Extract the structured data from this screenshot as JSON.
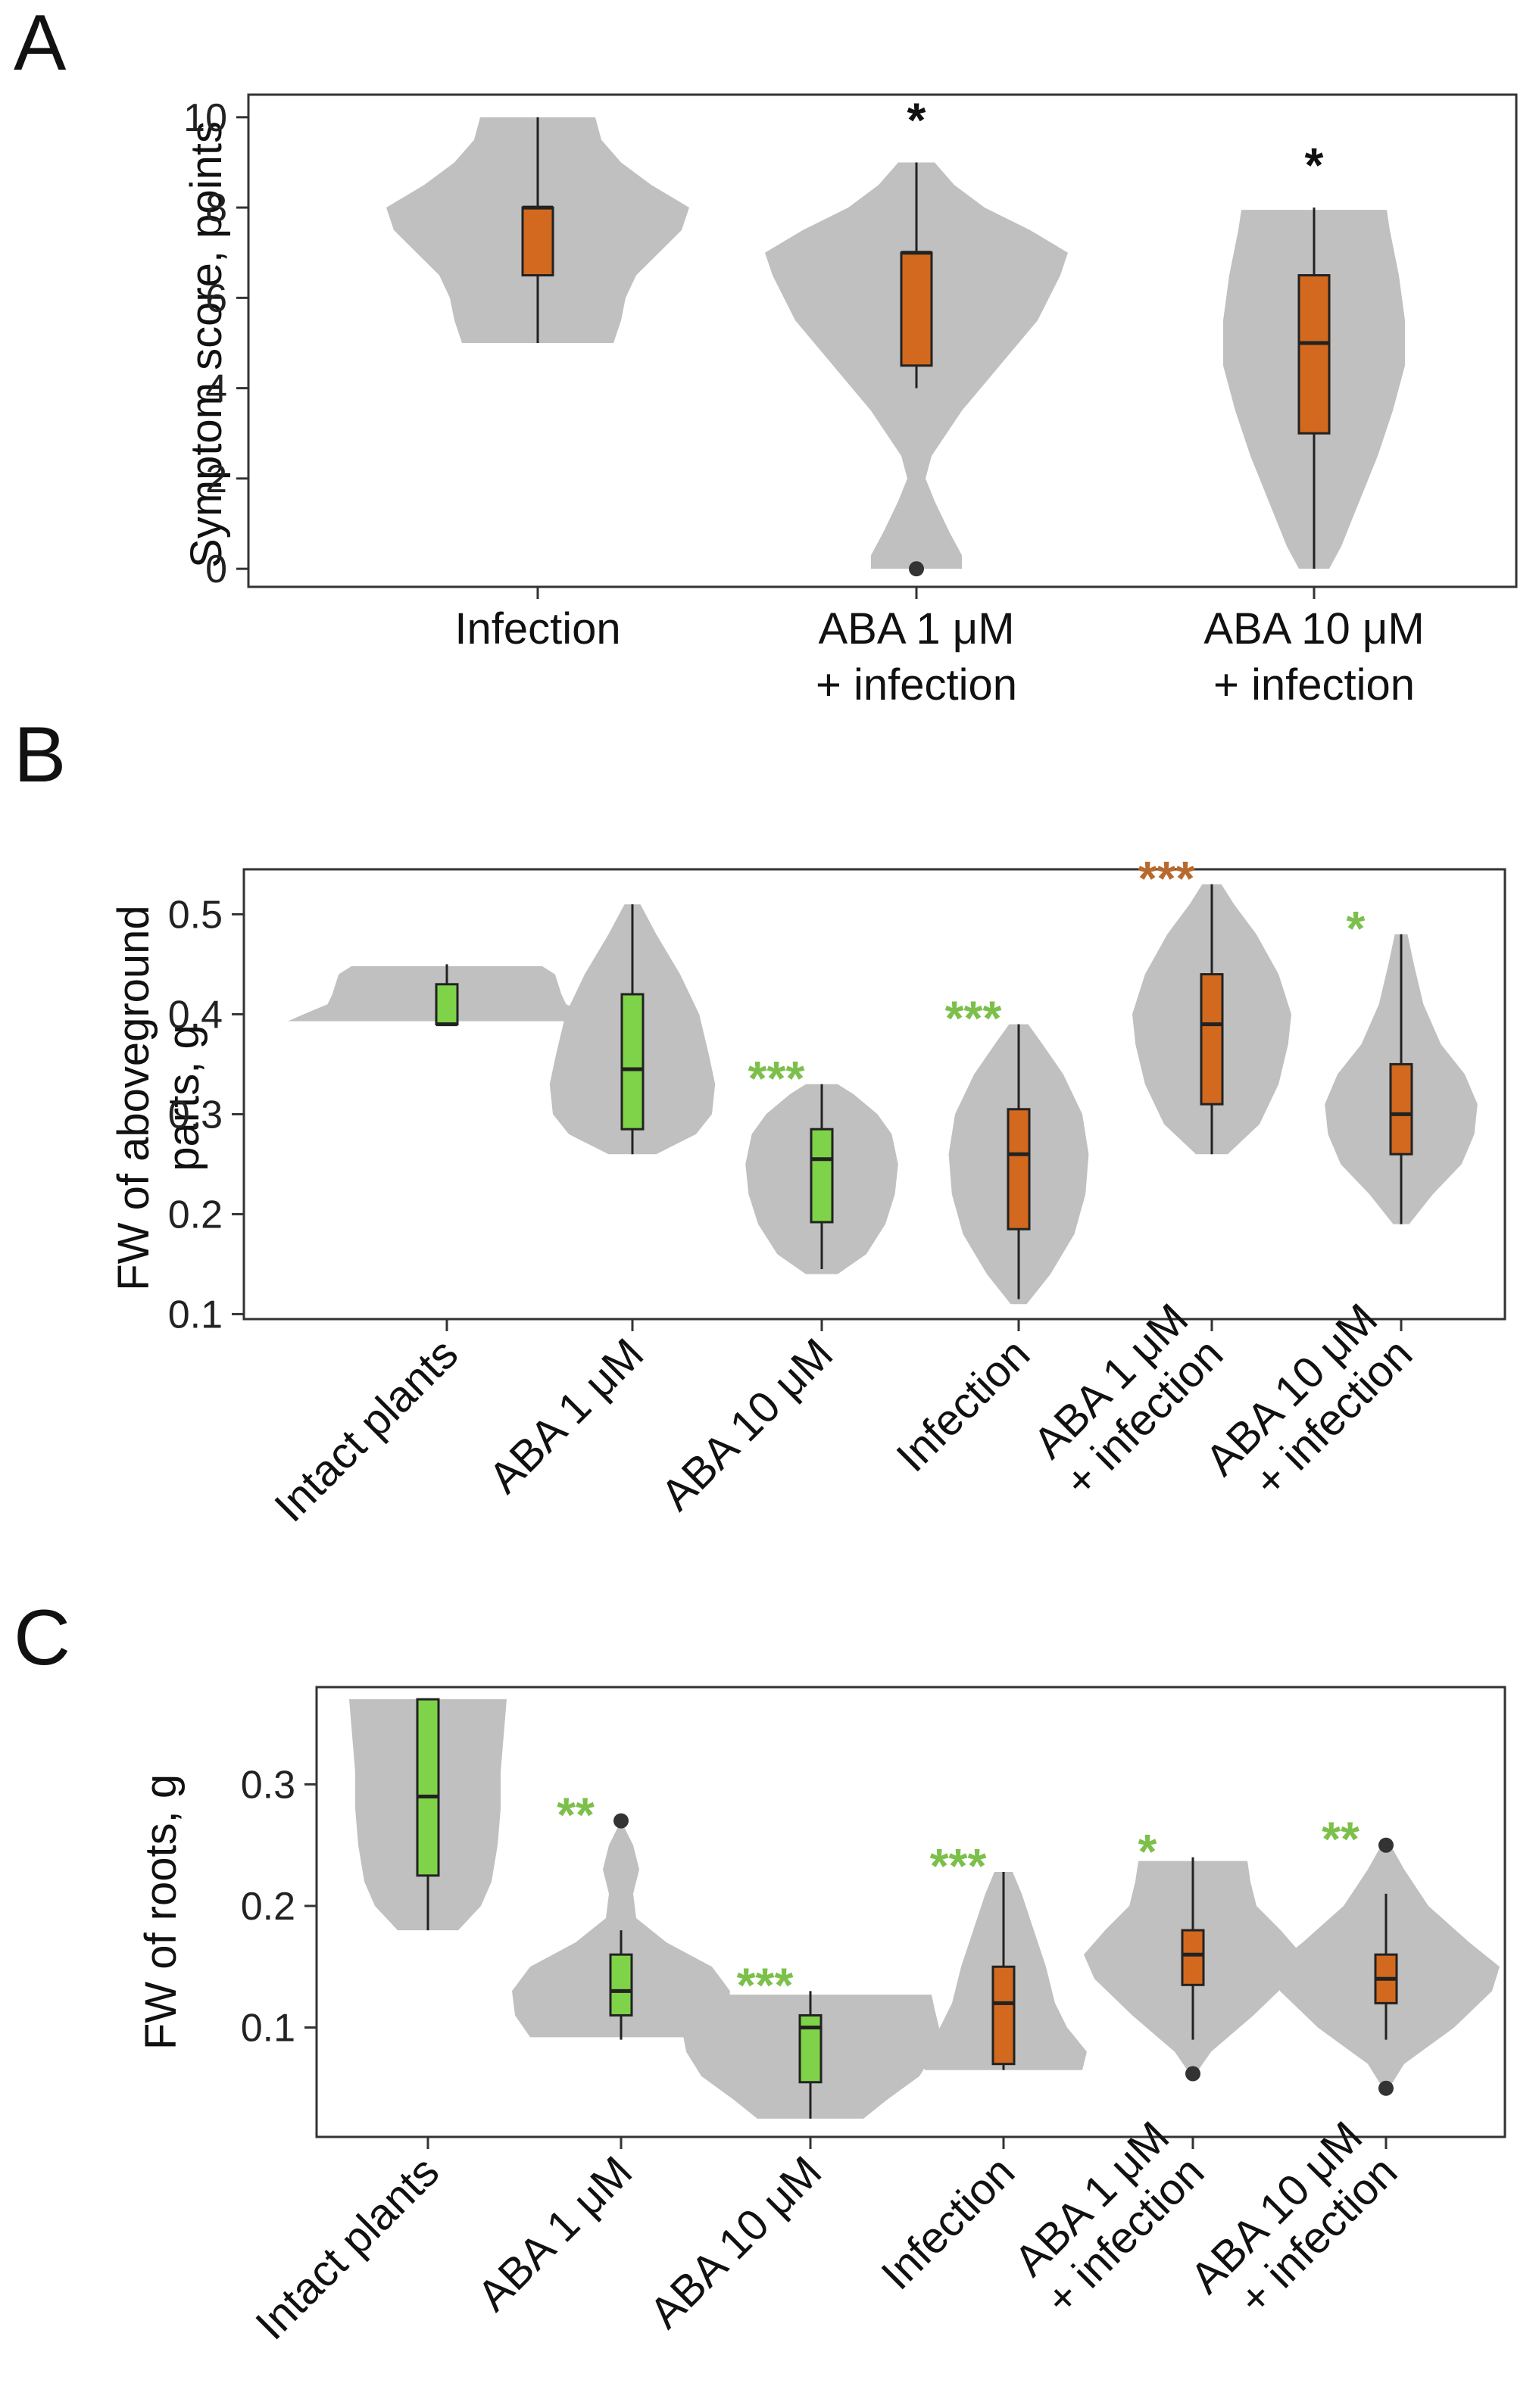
{
  "colors": {
    "violin": "#c0c0c0",
    "box_orange": "#d2691e",
    "box_green": "#7ed348",
    "star_black": "#111111",
    "star_green": "#7cc04b",
    "star_orange": "#b86a2e",
    "outlier": "#333333"
  },
  "chart_data": [
    {
      "panel": "A",
      "type": "violin",
      "ylabel": "Symptom score, points",
      "ylim": [
        -0.4,
        10.5
      ],
      "yticks": [
        0,
        2,
        4,
        6,
        8,
        10
      ],
      "ytick_labels": [
        "0",
        "2",
        "4",
        "6",
        "8",
        "10"
      ],
      "categories": [
        {
          "lines": [
            "Infection"
          ]
        },
        {
          "lines": [
            "ABA 1 μM",
            "+ infection"
          ]
        },
        {
          "lines": [
            "ABA 10 μM",
            "+ infection"
          ]
        }
      ],
      "groups": [
        {
          "name": "Infection",
          "box_color": "orange",
          "min": 5,
          "q1": 6.5,
          "median": 8,
          "q3": 8,
          "max": 10,
          "outliers": [],
          "sig": "",
          "sig_color": "black",
          "violin": [
            [
              5.0,
              0.5
            ],
            [
              5.5,
              0.55
            ],
            [
              6.0,
              0.58
            ],
            [
              6.5,
              0.65
            ],
            [
              7.0,
              0.8
            ],
            [
              7.5,
              0.95
            ],
            [
              8.0,
              1.0
            ],
            [
              8.5,
              0.75
            ],
            [
              9.0,
              0.55
            ],
            [
              9.5,
              0.42
            ],
            [
              10.0,
              0.38
            ]
          ]
        },
        {
          "name": "ABA 1 μM + infection",
          "box_color": "orange",
          "min": 4,
          "q1": 4.5,
          "median": 7,
          "q3": 7,
          "max": 9,
          "outliers": [
            0
          ],
          "sig": "*",
          "sig_color": "black",
          "violin": [
            [
              0.0,
              0.3
            ],
            [
              0.3,
              0.3
            ],
            [
              0.8,
              0.22
            ],
            [
              1.5,
              0.12
            ],
            [
              2.0,
              0.06
            ],
            [
              2.5,
              0.1
            ],
            [
              3.5,
              0.3
            ],
            [
              4.5,
              0.55
            ],
            [
              5.5,
              0.8
            ],
            [
              6.5,
              0.95
            ],
            [
              7.0,
              1.0
            ],
            [
              7.5,
              0.75
            ],
            [
              8.0,
              0.45
            ],
            [
              8.5,
              0.25
            ],
            [
              9.0,
              0.12
            ]
          ]
        },
        {
          "name": "ABA 10 μM + infection",
          "box_color": "orange",
          "min": 0,
          "q1": 3,
          "median": 5,
          "q3": 6.5,
          "max": 8,
          "outliers": [],
          "sig": "*",
          "sig_color": "black",
          "violin": [
            [
              0.0,
              0.1
            ],
            [
              0.5,
              0.18
            ],
            [
              1.5,
              0.3
            ],
            [
              2.5,
              0.42
            ],
            [
              3.5,
              0.52
            ],
            [
              4.5,
              0.6
            ],
            [
              5.5,
              0.6
            ],
            [
              6.5,
              0.56
            ],
            [
              7.5,
              0.5
            ],
            [
              7.95,
              0.48
            ]
          ]
        }
      ]
    },
    {
      "panel": "B",
      "type": "violin",
      "ylabel": [
        "FW of aboveground",
        "parts, g"
      ],
      "ylim": [
        0.095,
        0.545
      ],
      "yticks": [
        0.1,
        0.2,
        0.3,
        0.4,
        0.5
      ],
      "ytick_labels": [
        "0.1",
        "0.2",
        "0.3",
        "0.4",
        "0.5"
      ],
      "categories": [
        {
          "lines": [
            "Intact plants"
          ]
        },
        {
          "lines": [
            "ABA 1 μM"
          ]
        },
        {
          "lines": [
            "ABA 10 μM"
          ]
        },
        {
          "lines": [
            "Infection"
          ]
        },
        {
          "lines": [
            "ABA 1 μM",
            "+ infection"
          ]
        },
        {
          "lines": [
            "ABA 10 μM",
            "+ infection"
          ]
        }
      ],
      "groups": [
        {
          "name": "Intact plants",
          "box_color": "green",
          "min": 0.39,
          "q1": 0.39,
          "median": 0.39,
          "q3": 0.43,
          "max": 0.45,
          "outliers": [],
          "sig": "",
          "sig_color": "green",
          "violin": [
            [
              0.393,
              1.0
            ],
            [
              0.4,
              0.9
            ],
            [
              0.41,
              0.75
            ],
            [
              0.42,
              0.72
            ],
            [
              0.43,
              0.7
            ],
            [
              0.44,
              0.68
            ],
            [
              0.448,
              0.6
            ]
          ]
        },
        {
          "name": "ABA 1 μM",
          "box_color": "green",
          "min": 0.26,
          "q1": 0.285,
          "median": 0.345,
          "q3": 0.42,
          "max": 0.51,
          "outliers": [],
          "sig": "",
          "sig_color": "green",
          "violin": [
            [
              0.26,
              0.15
            ],
            [
              0.28,
              0.4
            ],
            [
              0.3,
              0.5
            ],
            [
              0.33,
              0.52
            ],
            [
              0.36,
              0.48
            ],
            [
              0.4,
              0.42
            ],
            [
              0.44,
              0.3
            ],
            [
              0.48,
              0.15
            ],
            [
              0.51,
              0.05
            ]
          ]
        },
        {
          "name": "ABA 10 μM",
          "box_color": "green",
          "min": 0.145,
          "q1": 0.192,
          "median": 0.255,
          "q3": 0.285,
          "max": 0.33,
          "outliers": [],
          "sig": "***",
          "sig_color": "green",
          "violin": [
            [
              0.14,
              0.1
            ],
            [
              0.16,
              0.28
            ],
            [
              0.19,
              0.4
            ],
            [
              0.22,
              0.46
            ],
            [
              0.25,
              0.48
            ],
            [
              0.28,
              0.44
            ],
            [
              0.3,
              0.35
            ],
            [
              0.32,
              0.2
            ],
            [
              0.33,
              0.1
            ]
          ]
        },
        {
          "name": "Infection",
          "box_color": "orange",
          "min": 0.115,
          "q1": 0.185,
          "median": 0.26,
          "q3": 0.305,
          "max": 0.39,
          "outliers": [],
          "sig": "***",
          "sig_color": "green",
          "violin": [
            [
              0.11,
              0.05
            ],
            [
              0.14,
              0.2
            ],
            [
              0.18,
              0.35
            ],
            [
              0.22,
              0.42
            ],
            [
              0.26,
              0.44
            ],
            [
              0.3,
              0.4
            ],
            [
              0.34,
              0.28
            ],
            [
              0.37,
              0.15
            ],
            [
              0.39,
              0.06
            ]
          ]
        },
        {
          "name": "ABA 1 μM + infection",
          "box_color": "orange",
          "min": 0.26,
          "q1": 0.31,
          "median": 0.39,
          "q3": 0.44,
          "max": 0.53,
          "outliers": [],
          "sig": "***",
          "sig_color": "orange",
          "violin": [
            [
              0.26,
              0.1
            ],
            [
              0.29,
              0.3
            ],
            [
              0.33,
              0.42
            ],
            [
              0.37,
              0.48
            ],
            [
              0.4,
              0.5
            ],
            [
              0.44,
              0.42
            ],
            [
              0.48,
              0.28
            ],
            [
              0.51,
              0.14
            ],
            [
              0.53,
              0.06
            ]
          ]
        },
        {
          "name": "ABA 10 μM + infection",
          "box_color": "orange",
          "min": 0.19,
          "q1": 0.26,
          "median": 0.3,
          "q3": 0.35,
          "max": 0.48,
          "outliers": [],
          "sig": "*",
          "sig_color": "green",
          "violin": [
            [
              0.19,
              0.05
            ],
            [
              0.22,
              0.2
            ],
            [
              0.25,
              0.38
            ],
            [
              0.28,
              0.46
            ],
            [
              0.31,
              0.48
            ],
            [
              0.34,
              0.4
            ],
            [
              0.37,
              0.25
            ],
            [
              0.41,
              0.14
            ],
            [
              0.45,
              0.08
            ],
            [
              0.48,
              0.04
            ]
          ]
        }
      ]
    },
    {
      "panel": "C",
      "type": "violin",
      "ylabel": "FW of roots, g",
      "ylim": [
        0.01,
        0.38
      ],
      "yticks": [
        0.1,
        0.2,
        0.3
      ],
      "ytick_labels": [
        "0.1",
        "0.2",
        "0.3"
      ],
      "categories": [
        {
          "lines": [
            "Intact plants"
          ]
        },
        {
          "lines": [
            "ABA 1 μM"
          ]
        },
        {
          "lines": [
            "ABA 10 μM"
          ]
        },
        {
          "lines": [
            "Infection"
          ]
        },
        {
          "lines": [
            "ABA 1 μM",
            "+ infection"
          ]
        },
        {
          "lines": [
            "ABA 10 μM",
            "+ infection"
          ]
        }
      ],
      "groups": [
        {
          "name": "Intact plants",
          "box_color": "green",
          "min": 0.18,
          "q1": 0.225,
          "median": 0.29,
          "q3": 0.37,
          "max": 0.37,
          "outliers": [],
          "sig": "",
          "sig_color": "green",
          "violin": [
            [
              0.18,
              0.2
            ],
            [
              0.2,
              0.35
            ],
            [
              0.22,
              0.42
            ],
            [
              0.25,
              0.46
            ],
            [
              0.28,
              0.48
            ],
            [
              0.31,
              0.48
            ],
            [
              0.34,
              0.5
            ],
            [
              0.37,
              0.52
            ]
          ]
        },
        {
          "name": "ABA 1 μM",
          "box_color": "green",
          "min": 0.09,
          "q1": 0.11,
          "median": 0.13,
          "q3": 0.16,
          "max": 0.18,
          "outliers": [
            0.27
          ],
          "sig": "**",
          "sig_color": "green",
          "violin": [
            [
              0.092,
              0.6
            ],
            [
              0.11,
              0.7
            ],
            [
              0.13,
              0.72
            ],
            [
              0.15,
              0.6
            ],
            [
              0.17,
              0.3
            ],
            [
              0.19,
              0.1
            ],
            [
              0.21,
              0.08
            ],
            [
              0.23,
              0.12
            ],
            [
              0.25,
              0.08
            ],
            [
              0.265,
              0.02
            ]
          ]
        },
        {
          "name": "ABA 10 μM",
          "box_color": "green",
          "min": 0.025,
          "q1": 0.055,
          "median": 0.1,
          "q3": 0.11,
          "max": 0.13,
          "outliers": [],
          "sig": "***",
          "sig_color": "green",
          "violin": [
            [
              0.025,
              0.35
            ],
            [
              0.04,
              0.5
            ],
            [
              0.06,
              0.72
            ],
            [
              0.08,
              0.82
            ],
            [
              0.1,
              0.85
            ],
            [
              0.115,
              0.82
            ],
            [
              0.127,
              0.8
            ]
          ]
        },
        {
          "name": "Infection",
          "box_color": "orange",
          "min": 0.065,
          "q1": 0.07,
          "median": 0.12,
          "q3": 0.15,
          "max": 0.228,
          "outliers": [],
          "sig": "***",
          "sig_color": "green",
          "violin": [
            [
              0.065,
              0.52
            ],
            [
              0.08,
              0.55
            ],
            [
              0.1,
              0.42
            ],
            [
              0.12,
              0.34
            ],
            [
              0.15,
              0.28
            ],
            [
              0.18,
              0.2
            ],
            [
              0.21,
              0.12
            ],
            [
              0.228,
              0.06
            ]
          ]
        },
        {
          "name": "ABA 1 μM + infection",
          "box_color": "orange",
          "min": 0.09,
          "q1": 0.135,
          "median": 0.16,
          "q3": 0.18,
          "max": 0.24,
          "outliers": [
            0.062
          ],
          "sig": "*",
          "sig_color": "green",
          "violin": [
            [
              0.062,
              0.02
            ],
            [
              0.08,
              0.12
            ],
            [
              0.11,
              0.4
            ],
            [
              0.14,
              0.65
            ],
            [
              0.16,
              0.72
            ],
            [
              0.18,
              0.58
            ],
            [
              0.2,
              0.42
            ],
            [
              0.22,
              0.38
            ],
            [
              0.237,
              0.36
            ]
          ]
        },
        {
          "name": "ABA 10 μM + infection",
          "box_color": "orange",
          "min": 0.09,
          "q1": 0.12,
          "median": 0.14,
          "q3": 0.16,
          "max": 0.21,
          "outliers": [
            0.05,
            0.25
          ],
          "sig": "**",
          "sig_color": "green",
          "violin": [
            [
              0.05,
              0.02
            ],
            [
              0.07,
              0.12
            ],
            [
              0.1,
              0.45
            ],
            [
              0.13,
              0.7
            ],
            [
              0.15,
              0.75
            ],
            [
              0.17,
              0.55
            ],
            [
              0.2,
              0.28
            ],
            [
              0.23,
              0.12
            ],
            [
              0.25,
              0.03
            ]
          ]
        }
      ]
    }
  ]
}
